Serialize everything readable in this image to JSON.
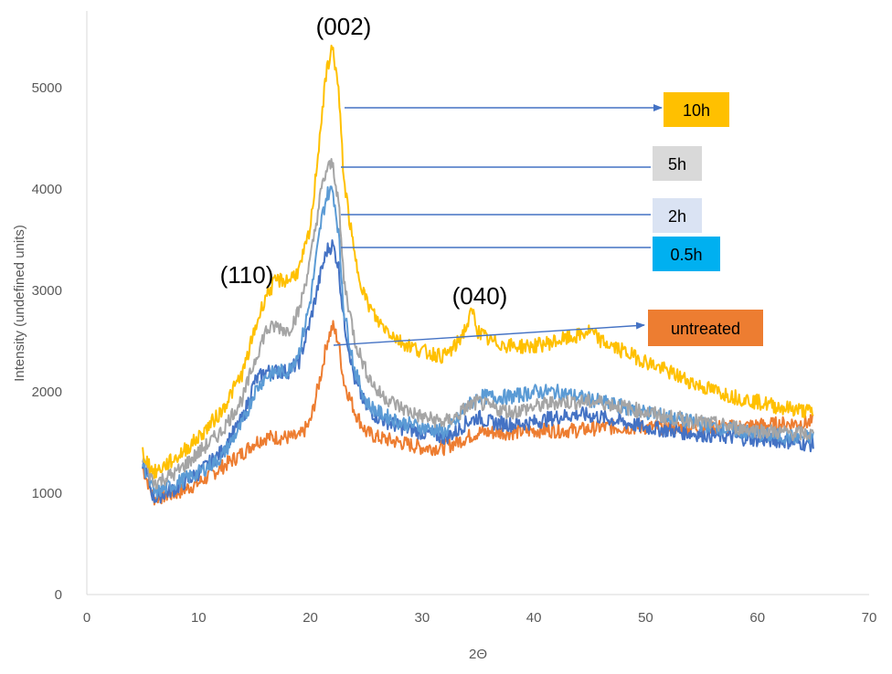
{
  "chart_data": {
    "type": "line",
    "title": "",
    "xlabel": "2Θ",
    "ylabel": "Intensity (undefined units)",
    "xlim": [
      0,
      70
    ],
    "ylim": [
      0,
      5500
    ],
    "xticks": [
      0,
      10,
      20,
      30,
      40,
      50,
      60,
      70
    ],
    "yticks": [
      0,
      1000,
      2000,
      3000,
      4000,
      5000
    ],
    "grid": false,
    "colors": {
      "series_10h": "#FFC000",
      "series_5h": "#A5A5A5",
      "series_2h": "#5B9BD5",
      "series_05h": "#4472C4",
      "series_untreated": "#ED7D31",
      "label_10h": "#FFC000",
      "label_5h": "#D9D9D9",
      "label_2h": "#DAE3F3",
      "label_05h": "#00B0F0",
      "label_untreated": "#ED7D31",
      "arrow": "#4472C4",
      "axis": "#D9D9D9"
    },
    "series": [
      {
        "name": "10h",
        "x": [
          5,
          6,
          8,
          10,
          12,
          14,
          15,
          16,
          17,
          18,
          19,
          20,
          21,
          21.5,
          22,
          22.5,
          23,
          24,
          25,
          26,
          28,
          30,
          32,
          33,
          34,
          34.5,
          35,
          36,
          38,
          40,
          42,
          44,
          45,
          46,
          48,
          50,
          52,
          55,
          58,
          60,
          62,
          65
        ],
        "y": [
          1400,
          1200,
          1350,
          1550,
          1800,
          2200,
          2600,
          2950,
          3100,
          3100,
          3200,
          3600,
          4700,
          5200,
          5400,
          5000,
          4100,
          3300,
          2900,
          2700,
          2500,
          2400,
          2350,
          2450,
          2650,
          2800,
          2600,
          2500,
          2450,
          2450,
          2500,
          2550,
          2600,
          2500,
          2400,
          2300,
          2200,
          2050,
          1950,
          1900,
          1850,
          1800
        ]
      },
      {
        "name": "5h",
        "x": [
          5,
          6,
          8,
          10,
          12,
          14,
          15,
          16,
          17,
          18,
          19,
          20,
          21,
          21.5,
          22,
          22.5,
          23,
          24,
          25,
          26,
          28,
          30,
          32,
          33,
          34,
          35,
          36,
          38,
          40,
          42,
          44,
          46,
          48,
          50,
          52,
          55,
          58,
          60,
          62,
          65
        ],
        "y": [
          1350,
          1100,
          1200,
          1400,
          1600,
          1950,
          2300,
          2600,
          2650,
          2600,
          2800,
          3300,
          4000,
          4200,
          4250,
          3900,
          3100,
          2500,
          2200,
          2000,
          1850,
          1750,
          1700,
          1750,
          1850,
          1900,
          1850,
          1800,
          1850,
          1900,
          1900,
          1900,
          1850,
          1800,
          1750,
          1700,
          1650,
          1620,
          1600,
          1580
        ]
      },
      {
        "name": "2h",
        "x": [
          5,
          6,
          8,
          10,
          12,
          14,
          15,
          16,
          17,
          18,
          19,
          20,
          21,
          21.5,
          22,
          22.5,
          23,
          24,
          25,
          26,
          28,
          30,
          32,
          33,
          34,
          35,
          36,
          38,
          40,
          42,
          44,
          46,
          48,
          50,
          52,
          55,
          58,
          60,
          62,
          65
        ],
        "y": [
          1300,
          1000,
          1100,
          1200,
          1350,
          1700,
          2000,
          2150,
          2200,
          2200,
          2400,
          2900,
          3700,
          3950,
          4000,
          3600,
          2800,
          2200,
          1900,
          1800,
          1700,
          1650,
          1600,
          1700,
          1850,
          1950,
          1950,
          1950,
          2000,
          2000,
          1950,
          1900,
          1850,
          1800,
          1750,
          1680,
          1620,
          1580,
          1560,
          1550
        ]
      },
      {
        "name": "0.5h",
        "x": [
          5,
          6,
          8,
          10,
          12,
          14,
          15,
          16,
          17,
          18,
          19,
          20,
          21,
          21.5,
          22,
          22.5,
          23,
          24,
          25,
          26,
          28,
          30,
          32,
          33,
          34,
          35,
          36,
          38,
          40,
          42,
          44,
          46,
          48,
          50,
          52,
          55,
          58,
          60,
          62,
          65
        ],
        "y": [
          1300,
          950,
          1050,
          1200,
          1400,
          1750,
          2100,
          2200,
          2200,
          2200,
          2300,
          2700,
          3200,
          3400,
          3450,
          3250,
          2700,
          2100,
          1850,
          1750,
          1650,
          1600,
          1550,
          1600,
          1700,
          1750,
          1700,
          1680,
          1700,
          1750,
          1780,
          1750,
          1700,
          1650,
          1620,
          1580,
          1550,
          1530,
          1520,
          1480
        ]
      },
      {
        "name": "untreated",
        "x": [
          5,
          6,
          8,
          10,
          12,
          14,
          15,
          16,
          17,
          18,
          19,
          20,
          21,
          21.5,
          22,
          22.5,
          23,
          24,
          25,
          26,
          28,
          30,
          32,
          34,
          35,
          36,
          38,
          40,
          42,
          44,
          46,
          48,
          50,
          52,
          55,
          58,
          60,
          62,
          65
        ],
        "y": [
          1250,
          950,
          1000,
          1100,
          1250,
          1400,
          1500,
          1550,
          1550,
          1550,
          1550,
          1700,
          2200,
          2500,
          2650,
          2500,
          2100,
          1800,
          1600,
          1550,
          1500,
          1450,
          1450,
          1550,
          1600,
          1600,
          1600,
          1620,
          1620,
          1620,
          1650,
          1650,
          1650,
          1650,
          1650,
          1650,
          1670,
          1680,
          1700
        ]
      }
    ],
    "annotations": {
      "peak_002": "(002)",
      "peak_110": "(110)",
      "peak_040": "(040)"
    },
    "legend_labels": {
      "h10": "10h",
      "h5": "5h",
      "h2": "2h",
      "h05": "0.5h",
      "untreated": "untreated"
    }
  }
}
